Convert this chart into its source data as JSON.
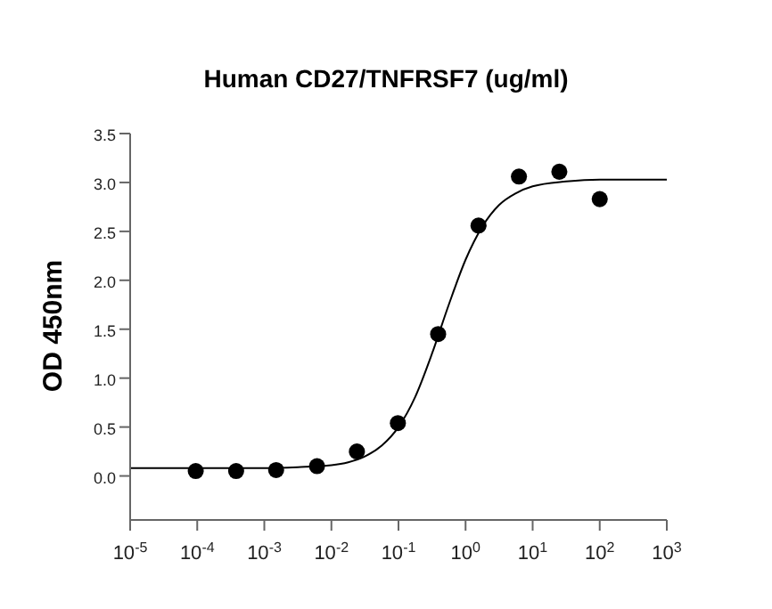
{
  "chart_data": {
    "type": "scatter",
    "title": "Human CD27/TNFRSF7 (ug/ml)",
    "ylabel": "OD 450nm",
    "log": "x",
    "marker": "circle",
    "xlim": [
      1e-05,
      1000
    ],
    "xticks": [
      {
        "value": 1e-05,
        "label": "10$^{-5}$"
      },
      {
        "value": 0.0001,
        "label": "10$^{-4}$"
      },
      {
        "value": 0.001,
        "label": "10$^{-3}$"
      },
      {
        "value": 0.01,
        "label": "10$^{-2}$"
      },
      {
        "value": 0.1,
        "label": "10$^{-1}$"
      },
      {
        "value": 1,
        "label": "10$^{0}$"
      },
      {
        "value": 10,
        "label": "10$^{1}$"
      },
      {
        "value": 100,
        "label": "10$^{2}$"
      },
      {
        "value": 1000,
        "label": "10$^{3}$"
      }
    ],
    "ylim": [
      -0.45,
      3.5
    ],
    "yticks": [
      {
        "value": 0,
        "label": "0.0"
      },
      0.5,
      {
        "value": 1,
        "label": "1.0"
      },
      1.5,
      {
        "value": 2,
        "label": "2.0"
      },
      2.5,
      {
        "value": 3,
        "label": "3.0"
      },
      3.5
    ],
    "series": [
      {
        "color": "#000000",
        "x": [
          9.5e-05,
          0.00038,
          0.0015,
          0.0061,
          0.024,
          0.098,
          0.39,
          1.56,
          6.25,
          25,
          100
        ],
        "values": [
          0.05,
          0.05,
          0.06,
          0.1,
          0.25,
          0.54,
          1.45,
          2.56,
          3.06,
          3.11,
          2.83
        ]
      },
      {
        "type": "line",
        "color": "#000000",
        "marker": "none",
        "line_style": "solid",
        "x": [
          1e-05,
          0.001,
          0.00316,
          0.01,
          0.0178,
          0.0316,
          0.0562,
          0.1,
          0.178,
          0.316,
          0.562,
          1,
          1.78,
          3.16,
          5.62,
          10,
          31.6,
          100,
          1000
        ],
        "values": [
          0.08,
          0.08,
          0.09,
          0.11,
          0.14,
          0.2,
          0.31,
          0.5,
          0.81,
          1.25,
          1.75,
          2.21,
          2.55,
          2.77,
          2.89,
          2.96,
          3.01,
          3.03,
          3.03
        ]
      }
    ]
  }
}
